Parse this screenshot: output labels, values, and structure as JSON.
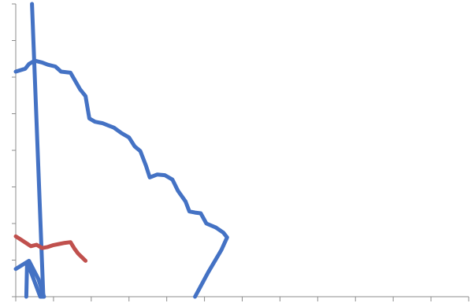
{
  "chart_data": {
    "type": "line",
    "title": "",
    "xlabel": "",
    "ylabel": "",
    "xlim": [
      0,
      12
    ],
    "ylim": [
      0,
      8
    ],
    "x_ticks": [
      0,
      1,
      2,
      3,
      4,
      5,
      6,
      7,
      8,
      9,
      10,
      11,
      12
    ],
    "y_ticks": [
      0,
      1,
      2,
      3,
      4,
      5,
      6,
      7,
      8
    ],
    "tick_labels_visible": false,
    "grid": false,
    "legend": "none",
    "series": [
      {
        "color": "#4472c4",
        "points": [
          [
            0.43,
            8.0
          ],
          [
            0.73,
            0.0
          ]
        ]
      },
      {
        "color": "#4472c4",
        "points": [
          [
            0.0,
            6.15
          ],
          [
            0.25,
            6.23
          ],
          [
            0.35,
            6.36
          ],
          [
            0.5,
            6.45
          ],
          [
            0.7,
            6.4
          ],
          [
            0.85,
            6.34
          ],
          [
            1.05,
            6.29
          ],
          [
            1.2,
            6.15
          ],
          [
            1.45,
            6.12
          ],
          [
            1.7,
            5.67
          ],
          [
            1.85,
            5.48
          ],
          [
            1.95,
            4.87
          ],
          [
            2.1,
            4.78
          ],
          [
            2.3,
            4.74
          ],
          [
            2.45,
            4.68
          ],
          [
            2.6,
            4.62
          ],
          [
            2.8,
            4.47
          ],
          [
            3.0,
            4.35
          ],
          [
            3.15,
            4.11
          ],
          [
            3.3,
            3.98
          ],
          [
            3.45,
            3.58
          ],
          [
            3.55,
            3.26
          ],
          [
            3.75,
            3.34
          ],
          [
            3.95,
            3.32
          ],
          [
            4.15,
            3.2
          ],
          [
            4.3,
            2.89
          ],
          [
            4.5,
            2.6
          ],
          [
            4.6,
            2.33
          ],
          [
            4.75,
            2.3
          ],
          [
            4.9,
            2.28
          ],
          [
            5.05,
            2.0
          ],
          [
            5.3,
            1.89
          ],
          [
            5.5,
            1.75
          ],
          [
            5.6,
            1.62
          ],
          [
            5.45,
            1.28
          ],
          [
            5.1,
            0.67
          ],
          [
            4.75,
            0.0
          ]
        ]
      },
      {
        "color": "#4472c4",
        "points": [
          [
            0.0,
            0.76
          ],
          [
            0.35,
            0.98
          ],
          [
            0.6,
            0.48
          ],
          [
            0.75,
            0.0
          ],
          [
            0.65,
            0.0
          ],
          [
            0.3,
            0.95
          ],
          [
            0.28,
            0.0
          ]
        ]
      },
      {
        "color": "#c0504d",
        "points": [
          [
            0.0,
            1.65
          ],
          [
            0.15,
            1.55
          ],
          [
            0.3,
            1.45
          ],
          [
            0.4,
            1.38
          ],
          [
            0.55,
            1.42
          ],
          [
            0.7,
            1.33
          ],
          [
            0.85,
            1.36
          ],
          [
            1.0,
            1.41
          ],
          [
            1.15,
            1.44
          ],
          [
            1.3,
            1.47
          ],
          [
            1.45,
            1.49
          ],
          [
            1.55,
            1.32
          ],
          [
            1.65,
            1.18
          ],
          [
            1.75,
            1.08
          ],
          [
            1.85,
            0.98
          ]
        ]
      }
    ]
  }
}
